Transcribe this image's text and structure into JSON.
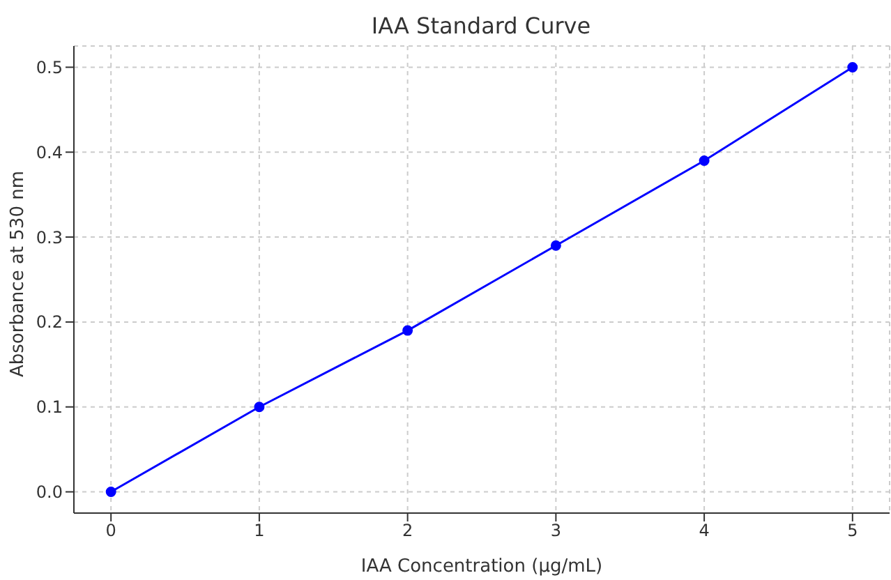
{
  "chart_data": {
    "type": "line",
    "title": "IAA Standard Curve",
    "xlabel": "IAA Concentration (µg/mL)",
    "ylabel": "Absorbance at 530 nm",
    "x": [
      0,
      1,
      2,
      3,
      4,
      5
    ],
    "series": [
      {
        "color": "#0000ff",
        "values": [
          0,
          0.1,
          0.19,
          0.29,
          0.39,
          0.5
        ]
      }
    ],
    "xlim": [
      -0.25,
      5.25
    ],
    "xticks": [
      0,
      1,
      2,
      3,
      4,
      5
    ],
    "ylim": [
      -0.025,
      0.525
    ],
    "yticks": [
      {
        "value": 0,
        "label": "0.0"
      },
      {
        "value": 0.1,
        "label": "0.1"
      },
      {
        "value": 0.2,
        "label": "0.2"
      },
      {
        "value": 0.3,
        "label": "0.3"
      },
      {
        "value": 0.4,
        "label": "0.4"
      },
      {
        "value": 0.5,
        "label": "0.5"
      }
    ],
    "grid": true,
    "marker": "circle",
    "line_style": "solid",
    "legend": false
  }
}
